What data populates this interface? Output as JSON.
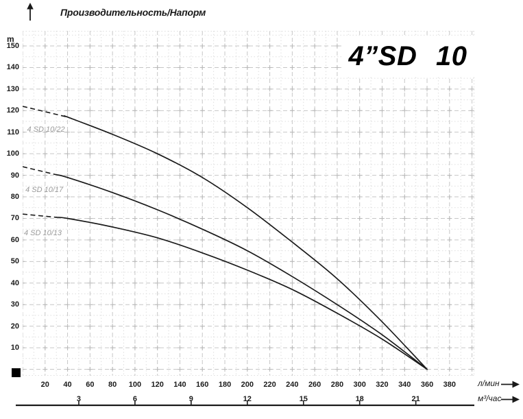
{
  "header": {
    "axis_title": "Производительность/Напорм",
    "y_unit_label": "m"
  },
  "title": "4”SD 10",
  "units": {
    "primary": "л/мин",
    "secondary": "м³/час"
  },
  "chart_data": {
    "type": "line",
    "title": "4”SD 10",
    "subtitle": "Производительность/Напорм",
    "ylabel": "m",
    "xlabel_primary": "л/мин",
    "xlabel_secondary": "м³/час",
    "x": [
      0,
      40,
      80,
      120,
      160,
      200,
      240,
      280,
      320,
      360
    ],
    "series": [
      {
        "name": "4 SD 10/22",
        "values": [
          122,
          117,
          109,
          100,
          89,
          75,
          59,
          42,
          22,
          0
        ],
        "dash_until": 40,
        "label_pos": {
          "q": 4,
          "h": 113
        }
      },
      {
        "name": "4 SD 10/17",
        "values": [
          94,
          89,
          82,
          74,
          65,
          55,
          43,
          30,
          16,
          0
        ],
        "dash_until": 30,
        "label_pos": {
          "q": 2.5,
          "h": 85
        }
      },
      {
        "name": "4 SD 10/13",
        "values": [
          72,
          70,
          66,
          61,
          54,
          46,
          37,
          26,
          14,
          0
        ],
        "dash_until": 30,
        "label_pos": {
          "q": 1.2,
          "h": 65
        }
      }
    ],
    "x_ticks_lmin": [
      20,
      40,
      60,
      80,
      100,
      120,
      140,
      160,
      180,
      200,
      220,
      240,
      260,
      280,
      300,
      320,
      340,
      360,
      380
    ],
    "x_ticks_m3": [
      3,
      6,
      9,
      12,
      15,
      18,
      21
    ],
    "y_ticks": [
      150,
      140,
      130,
      120,
      110,
      100,
      90,
      80,
      70,
      60,
      50,
      40,
      30,
      20,
      10
    ],
    "xlim": [
      0,
      402
    ],
    "ylim": [
      0,
      157
    ],
    "grid": {
      "minor_x_step": 10,
      "major_x_step": 20,
      "minor_y_step": 5,
      "major_y_step": 10,
      "grid_on": true
    },
    "legend_position": "labels-on-curves",
    "colors": {
      "curve": "#1a1a1a",
      "grid_minor": "#dedede",
      "grid_major": "#c6c6c6",
      "grid_cross": "#b8b8b8",
      "curve_label": "#9a9a9a",
      "text": "#1a1a1a"
    }
  }
}
